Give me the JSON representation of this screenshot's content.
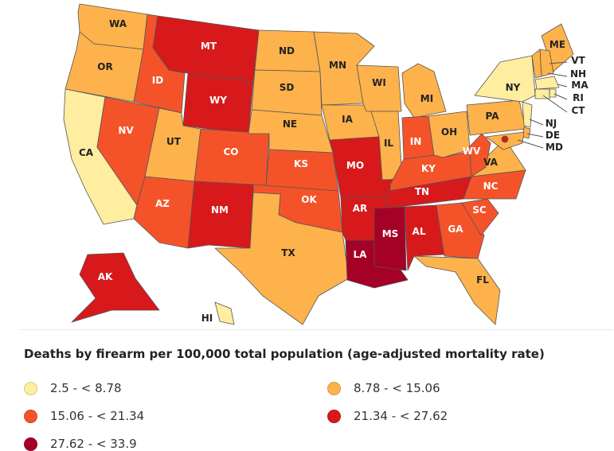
{
  "legend": {
    "title": "Deaths by firearm per 100,000 total population (age-adjusted mortality rate)",
    "bins": [
      {
        "label": "2.5 - < 8.78",
        "color": "#ffeda0"
      },
      {
        "label": "8.78 - < 15.06",
        "color": "#feb24c"
      },
      {
        "label": "15.06 - < 21.34",
        "color": "#f4532a"
      },
      {
        "label": "21.34 - < 27.62",
        "color": "#d7191c"
      },
      {
        "label": "27.62 - < 33.9",
        "color": "#a50026"
      }
    ]
  },
  "states": {
    "WA": {
      "label": "WA",
      "bin": 1
    },
    "OR": {
      "label": "OR",
      "bin": 1
    },
    "CA": {
      "label": "CA",
      "bin": 0
    },
    "ID": {
      "label": "ID",
      "bin": 2
    },
    "NV": {
      "label": "NV",
      "bin": 2
    },
    "MT": {
      "label": "MT",
      "bin": 3
    },
    "WY": {
      "label": "WY",
      "bin": 3
    },
    "UT": {
      "label": "UT",
      "bin": 1
    },
    "AZ": {
      "label": "AZ",
      "bin": 2
    },
    "CO": {
      "label": "CO",
      "bin": 2
    },
    "NM": {
      "label": "NM",
      "bin": 3
    },
    "ND": {
      "label": "ND",
      "bin": 1
    },
    "SD": {
      "label": "SD",
      "bin": 1
    },
    "NE": {
      "label": "NE",
      "bin": 1
    },
    "KS": {
      "label": "KS",
      "bin": 2
    },
    "OK": {
      "label": "OK",
      "bin": 2
    },
    "TX": {
      "label": "TX",
      "bin": 1
    },
    "MN": {
      "label": "MN",
      "bin": 1
    },
    "IA": {
      "label": "IA",
      "bin": 1
    },
    "MO": {
      "label": "MO",
      "bin": 3
    },
    "AR": {
      "label": "AR",
      "bin": 3
    },
    "LA": {
      "label": "LA",
      "bin": 4
    },
    "WI": {
      "label": "WI",
      "bin": 1
    },
    "IL": {
      "label": "IL",
      "bin": 1
    },
    "MI": {
      "label": "MI",
      "bin": 1
    },
    "IN": {
      "label": "IN",
      "bin": 2
    },
    "OH": {
      "label": "OH",
      "bin": 1
    },
    "KY": {
      "label": "KY",
      "bin": 2
    },
    "TN": {
      "label": "TN",
      "bin": 3
    },
    "MS": {
      "label": "MS",
      "bin": 4
    },
    "AL": {
      "label": "AL",
      "bin": 3
    },
    "GA": {
      "label": "GA",
      "bin": 2
    },
    "FL": {
      "label": "FL",
      "bin": 1
    },
    "SC": {
      "label": "SC",
      "bin": 2
    },
    "NC": {
      "label": "NC",
      "bin": 2
    },
    "VA": {
      "label": "VA",
      "bin": 1
    },
    "WV": {
      "label": "WV",
      "bin": 2
    },
    "PA": {
      "label": "PA",
      "bin": 1
    },
    "NY": {
      "label": "NY",
      "bin": 0
    },
    "ME": {
      "label": "ME",
      "bin": 1
    },
    "VT": {
      "label": "VT",
      "bin": 1
    },
    "NH": {
      "label": "NH",
      "bin": 1
    },
    "MA": {
      "label": "MA",
      "bin": 0
    },
    "RI": {
      "label": "RI",
      "bin": 0
    },
    "CT": {
      "label": "CT",
      "bin": 0
    },
    "NJ": {
      "label": "NJ",
      "bin": 0
    },
    "DE": {
      "label": "DE",
      "bin": 1
    },
    "MD": {
      "label": "MD",
      "bin": 1
    },
    "DC": {
      "bin": 3
    },
    "AK": {
      "label": "AK",
      "bin": 3
    },
    "HI": {
      "label": "HI",
      "bin": 0
    }
  }
}
